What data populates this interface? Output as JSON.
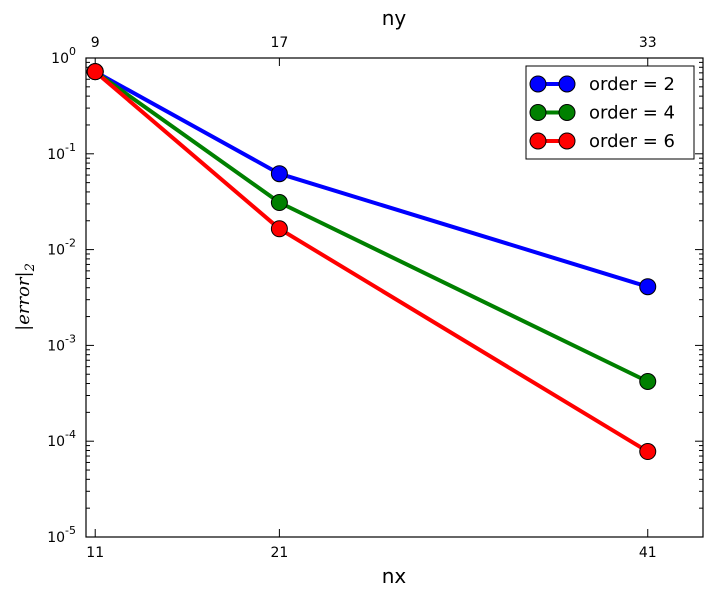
{
  "chart_data": {
    "type": "line",
    "x": [
      11,
      21,
      41
    ],
    "x_top": [
      9,
      17,
      33
    ],
    "xlim": [
      10.5,
      44
    ],
    "ylim": [
      1e-05,
      1
    ],
    "yscale": "log",
    "xlabel": "nx",
    "x2label": "ny",
    "ylabel": "|error|",
    "ylabel_sub": "2",
    "yticks": [
      {
        "value": 1,
        "base": "10",
        "exp": "0"
      },
      {
        "value": 0.1,
        "base": "10",
        "exp": "-1"
      },
      {
        "value": 0.01,
        "base": "10",
        "exp": "-2"
      },
      {
        "value": 0.001,
        "base": "10",
        "exp": "-3"
      },
      {
        "value": 0.0001,
        "base": "10",
        "exp": "-4"
      },
      {
        "value": 1e-05,
        "base": "10",
        "exp": "-5"
      }
    ],
    "legend_position": "top-right",
    "grid": false,
    "series": [
      {
        "name": "order = 2",
        "color": "#0000ff",
        "values": [
          0.72,
          0.062,
          0.0041
        ]
      },
      {
        "name": "order = 4",
        "color": "#008000",
        "values": [
          0.72,
          0.031,
          0.00042
        ]
      },
      {
        "name": "order = 6",
        "color": "#ff0000",
        "values": [
          0.72,
          0.0165,
          7.8e-05
        ]
      }
    ]
  }
}
